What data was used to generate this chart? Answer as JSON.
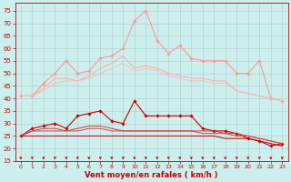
{
  "background_color": "#cceeed",
  "grid_color": "#aacccc",
  "xlabel": "Vent moyen/en rafales ( km/h )",
  "x_ticks": [
    0,
    1,
    2,
    3,
    4,
    5,
    6,
    7,
    8,
    9,
    10,
    11,
    12,
    13,
    14,
    15,
    16,
    17,
    18,
    19,
    20,
    21,
    22,
    23
  ],
  "ylim": [
    15,
    78
  ],
  "yticks": [
    15,
    20,
    25,
    30,
    35,
    40,
    45,
    50,
    55,
    60,
    65,
    70,
    75
  ],
  "lines": [
    {
      "label": "rafales_max",
      "color": "#ff9999",
      "linewidth": 0.8,
      "marker": "D",
      "markersize": 1.8,
      "values": [
        41,
        41,
        46,
        50,
        55,
        50,
        51,
        56,
        57,
        60,
        71,
        75,
        63,
        58,
        61,
        56,
        55,
        55,
        55,
        50,
        50,
        55,
        40,
        39
      ]
    },
    {
      "label": "rafales_moy1",
      "color": "#ffaaaa",
      "linewidth": 0.7,
      "marker": null,
      "markersize": 0,
      "values": [
        41,
        41,
        44,
        48,
        48,
        47,
        49,
        52,
        54,
        57,
        52,
        53,
        52,
        50,
        49,
        48,
        48,
        47,
        47,
        43,
        42,
        41,
        40,
        39
      ]
    },
    {
      "label": "rafales_moy2",
      "color": "#ffbbbb",
      "linewidth": 0.7,
      "marker": null,
      "markersize": 0,
      "values": [
        41,
        41,
        43,
        46,
        47,
        47,
        48,
        50,
        52,
        54,
        51,
        52,
        51,
        49,
        48,
        47,
        47,
        46,
        46,
        43,
        42,
        41,
        40,
        39
      ]
    },
    {
      "label": "vent_max",
      "color": "#cc0000",
      "linewidth": 0.8,
      "marker": "D",
      "markersize": 1.8,
      "values": [
        25,
        28,
        29,
        30,
        28,
        33,
        34,
        35,
        31,
        30,
        39,
        33,
        33,
        33,
        33,
        33,
        28,
        27,
        27,
        26,
        24,
        23,
        21,
        22
      ]
    },
    {
      "label": "vent_moy1",
      "color": "#dd3333",
      "linewidth": 0.7,
      "marker": null,
      "markersize": 0,
      "values": [
        25,
        27,
        28,
        28,
        27,
        28,
        29,
        29,
        28,
        27,
        27,
        27,
        27,
        27,
        27,
        27,
        27,
        27,
        26,
        26,
        25,
        24,
        23,
        22
      ]
    },
    {
      "label": "vent_moy2",
      "color": "#dd4444",
      "linewidth": 0.7,
      "marker": null,
      "markersize": 0,
      "values": [
        25,
        27,
        27,
        27,
        27,
        27,
        28,
        28,
        27,
        27,
        27,
        27,
        27,
        27,
        27,
        27,
        26,
        26,
        26,
        25,
        25,
        24,
        23,
        22
      ]
    },
    {
      "label": "vent_min",
      "color": "#bb0000",
      "linewidth": 0.7,
      "marker": null,
      "markersize": 0,
      "values": [
        25,
        25,
        25,
        25,
        25,
        25,
        25,
        25,
        25,
        25,
        25,
        25,
        25,
        25,
        25,
        25,
        25,
        25,
        24,
        24,
        24,
        23,
        22,
        21
      ]
    }
  ],
  "arrow_color": "#cc0000",
  "tick_color": "#cc0000",
  "xlabel_color": "#cc0000",
  "xlabel_fontsize": 6.0,
  "ytick_fontsize": 5.0,
  "xtick_fontsize": 4.5
}
